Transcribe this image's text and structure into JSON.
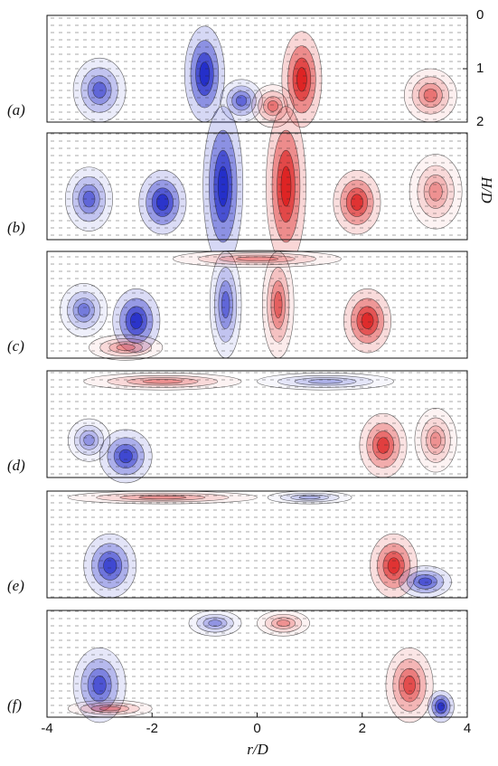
{
  "chart_data": {
    "type": "contour",
    "panels": [
      "(a)",
      "(b)",
      "(c)",
      "(d)",
      "(e)",
      "(f)"
    ],
    "xlabel": "r/D",
    "ylabel": "H/D",
    "xlim": [
      -4,
      4
    ],
    "xticks": [
      -4,
      -2,
      0,
      2,
      4
    ],
    "ylim": [
      0,
      2
    ],
    "yticks": [
      0,
      1,
      2
    ]
  }
}
